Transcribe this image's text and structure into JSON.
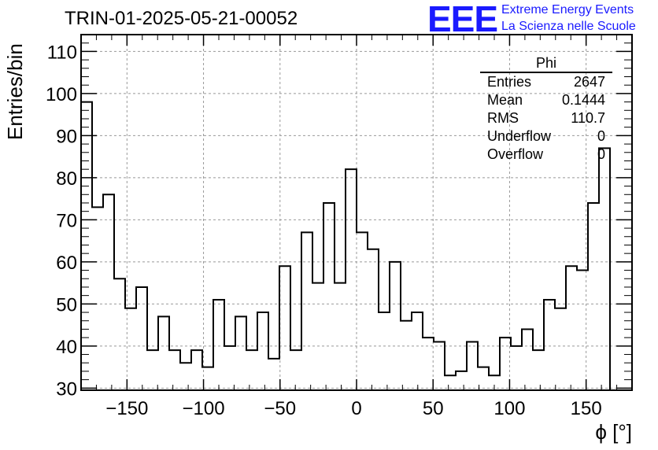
{
  "title": "TRIN-01-2025-05-21-00052",
  "logo": {
    "text": "EEE",
    "line1": "Extreme Energy Events",
    "line2": "La Scienza nelle Scuole",
    "color": "#1a1aff"
  },
  "stats": {
    "name": "Phi",
    "rows": [
      {
        "label": "Entries",
        "value": "2647"
      },
      {
        "label": "Mean",
        "value": "0.1444"
      },
      {
        "label": "RMS",
        "value": "110.7"
      },
      {
        "label": "Underflow",
        "value": "0"
      },
      {
        "label": "Overflow",
        "value": "0"
      }
    ]
  },
  "chart_data": {
    "type": "bar",
    "title": "TRIN-01-2025-05-21-00052",
    "xlabel": "ϕ [°]",
    "ylabel": "Entries/bin",
    "xlim": [
      -180,
      180
    ],
    "ylim": [
      29.5,
      114
    ],
    "bin_width": 7.2,
    "values": [
      98,
      73,
      76,
      56,
      49,
      54,
      39,
      47,
      39,
      36,
      39,
      35,
      51,
      40,
      47,
      39,
      48,
      37,
      59,
      39,
      67,
      55,
      74,
      55,
      82,
      67,
      63,
      48,
      60,
      46,
      48,
      42,
      41,
      33,
      34,
      41,
      35,
      33,
      42,
      40,
      44,
      39,
      51,
      49,
      59,
      58,
      74,
      87
    ],
    "xticks": [
      -150,
      -100,
      -50,
      0,
      50,
      100,
      150
    ],
    "xtick_labels": [
      "−150",
      "−100",
      "−50",
      "0",
      "50",
      "100",
      "150"
    ],
    "yticks": [
      30,
      40,
      50,
      60,
      70,
      80,
      90,
      100,
      110
    ],
    "ytick_labels": [
      "30",
      "40",
      "50",
      "60",
      "70",
      "80",
      "90",
      "100",
      "110"
    ],
    "grid": true
  }
}
